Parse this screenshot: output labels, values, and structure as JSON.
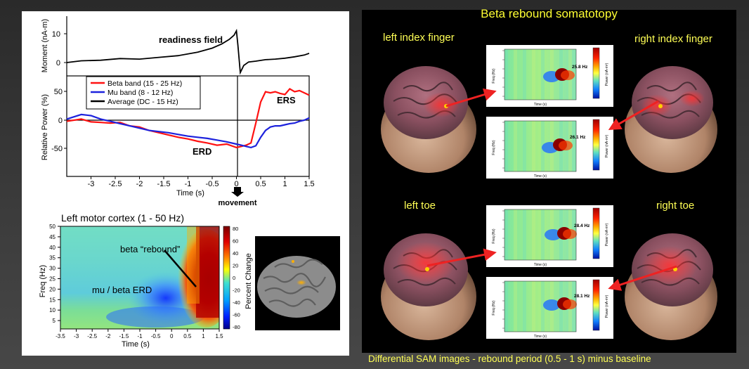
{
  "left": {
    "top_chart": {
      "moment_ylabel": "Moment (nA-m)",
      "moment_ticks": [
        "10",
        "0"
      ],
      "annotation": "readiness field",
      "power_ylabel": "Relative Power (%)",
      "power_ticks": [
        "50",
        "0",
        "-50"
      ],
      "xlabel": "Time (s)",
      "xticks": [
        "-3",
        "-2.5",
        "-2",
        "-1.5",
        "-1",
        "-0.5",
        "0",
        "0.5",
        "1",
        "1.5"
      ],
      "legend": [
        "Beta band (15 - 25 Hz)",
        "Mu band (8 - 12 Hz)",
        "Average (DC - 15 Hz)"
      ],
      "erd_label": "ERD",
      "ers_label": "ERS",
      "movement_label": "movement"
    },
    "heatmap": {
      "title": "Left motor cortex (1 - 50 Hz)",
      "ylabel": "Freq (Hz)",
      "xlabel": "Time (s)",
      "yticks": [
        "50",
        "45",
        "40",
        "35",
        "30",
        "25",
        "20",
        "15",
        "10",
        "5"
      ],
      "xticks": [
        "-3.5",
        "-3",
        "-2.5",
        "-2",
        "-1.5",
        "-1",
        "-0.5",
        "0",
        "0.5",
        "1",
        "1.5"
      ],
      "colorbar_label": "Percent Change",
      "colorbar_ticks": [
        "80",
        "60",
        "40",
        "20",
        "0",
        "-20",
        "-40",
        "-60",
        "-80"
      ],
      "rebound_label": "beta “rebound”",
      "erd_label": "mu / beta ERD"
    }
  },
  "right": {
    "title": "Beta rebound  somatotopy",
    "labels": {
      "left_index": "left index finger",
      "right_index": "right index finger",
      "left_toe": "left toe",
      "right_toe": "right toe"
    },
    "panels": [
      {
        "peak": "25.8 Hz"
      },
      {
        "peak": "26.1 Hz"
      },
      {
        "peak": "28.4 Hz"
      },
      {
        "peak": "28.1 Hz"
      }
    ],
    "panel_ylabel": "Freq (Hz)",
    "panel_xlabel": "Time (s)",
    "panel_cbar_label": "Power (nA-m²)",
    "caption": "Differential SAM images - rebound period (0.5 - 1 s) minus baseline"
  },
  "chart_data": [
    {
      "type": "line",
      "title": "",
      "xlabel": "Time (s)",
      "ylabel": "Moment (nA-m)",
      "xlim": [
        -3.5,
        1.5
      ],
      "ylim": [
        -5,
        14
      ],
      "series": [
        {
          "name": "",
          "x": [
            -3.5,
            -3.2,
            -2.8,
            -2.4,
            -2.0,
            -1.6,
            -1.2,
            -0.8,
            -0.5,
            -0.3,
            -0.15,
            -0.05,
            0,
            0.03,
            0.08,
            0.15,
            0.25,
            0.4,
            0.6,
            0.8,
            1.0,
            1.2,
            1.4,
            1.5
          ],
          "y": [
            0,
            0.6,
            0.8,
            1.4,
            1.2,
            1.8,
            2.4,
            3.6,
            5.0,
            6.5,
            8.0,
            9.5,
            11,
            6.0,
            -3.5,
            -1.0,
            0.2,
            0.5,
            1.0,
            1.2,
            1.5,
            2.0,
            2.6,
            3.2
          ]
        }
      ]
    },
    {
      "type": "line",
      "title": "",
      "xlabel": "Time (s)",
      "ylabel": "Relative Power (%)",
      "xlim": [
        -3.5,
        1.5
      ],
      "ylim": [
        -80,
        70
      ],
      "series": [
        {
          "name": "Beta band (15 - 25 Hz)",
          "x": [
            -3.5,
            -3.2,
            -3.0,
            -2.8,
            -2.6,
            -2.4,
            -2.2,
            -2.0,
            -1.8,
            -1.6,
            -1.4,
            -1.2,
            -1.0,
            -0.8,
            -0.6,
            -0.4,
            -0.2,
            0,
            0.1,
            0.2,
            0.3,
            0.4,
            0.5,
            0.6,
            0.7,
            0.8,
            0.9,
            1.0,
            1.1,
            1.2,
            1.3,
            1.4,
            1.5
          ],
          "y": [
            -2,
            2,
            -3,
            -4,
            -5,
            -4,
            -10,
            -12,
            -18,
            -22,
            -26,
            -30,
            -33,
            -37,
            -40,
            -44,
            -42,
            -48,
            -46,
            -44,
            -40,
            -5,
            32,
            50,
            48,
            50,
            47,
            45,
            55,
            50,
            52,
            48,
            44
          ]
        },
        {
          "name": "Mu band (8 - 12 Hz)",
          "x": [
            -3.5,
            -3.2,
            -3.0,
            -2.8,
            -2.6,
            -2.4,
            -2.2,
            -2.0,
            -1.8,
            -1.6,
            -1.4,
            -1.2,
            -1.0,
            -0.8,
            -0.6,
            -0.4,
            -0.2,
            0,
            0.1,
            0.2,
            0.3,
            0.4,
            0.5,
            0.6,
            0.7,
            0.8,
            0.9,
            1.0,
            1.1,
            1.2,
            1.3,
            1.4,
            1.5
          ],
          "y": [
            2,
            10,
            8,
            2,
            -2,
            -6,
            -10,
            -14,
            -18,
            -20,
            -22,
            -25,
            -28,
            -30,
            -32,
            -35,
            -38,
            -42,
            -44,
            -46,
            -48,
            -45,
            -30,
            -18,
            -12,
            -10,
            -10,
            -8,
            -6,
            -5,
            -2,
            0,
            4
          ]
        }
      ]
    },
    {
      "type": "heatmap",
      "title": "Left motor cortex (1 - 50 Hz)",
      "xlabel": "Time (s)",
      "ylabel": "Freq (Hz)",
      "xlim": [
        -3.5,
        1.5
      ],
      "ylim": [
        1,
        50
      ],
      "colorbar_range": [
        -80,
        80
      ],
      "colorbar_label": "Percent Change"
    }
  ]
}
